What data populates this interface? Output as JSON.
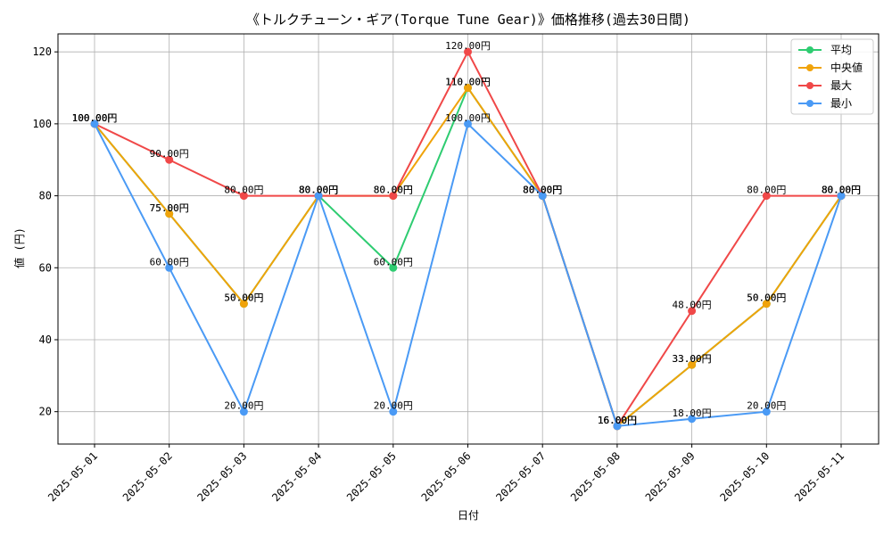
{
  "chart_data": {
    "type": "line",
    "title": "《トルクチューン・ギア(Torque Tune Gear)》価格推移(過去30日間)",
    "xlabel": "日付",
    "ylabel": "値 (円)",
    "categories": [
      "2025-05-01",
      "2025-05-02",
      "2025-05-03",
      "2025-05-04",
      "2025-05-05",
      "2025-05-06",
      "2025-05-07",
      "2025-05-08",
      "2025-05-09",
      "2025-05-10",
      "2025-05-11"
    ],
    "ylim": [
      11,
      125
    ],
    "yticks": [
      20,
      40,
      60,
      80,
      100,
      120
    ],
    "grid": true,
    "legend_position": "top-right",
    "label_suffix": "円",
    "series": [
      {
        "name": "平均",
        "color": "#2ecc71",
        "values": [
          100,
          75,
          50,
          80,
          60,
          110,
          80,
          16,
          33,
          50,
          80
        ]
      },
      {
        "name": "中央値",
        "color": "#f0a30a",
        "values": [
          100,
          75,
          50,
          80,
          80,
          110,
          80,
          16,
          33,
          50,
          80
        ]
      },
      {
        "name": "最大",
        "color": "#f04848",
        "values": [
          100,
          90,
          80,
          80,
          80,
          120,
          80,
          16,
          48,
          80,
          80
        ]
      },
      {
        "name": "最小",
        "color": "#4a9af5",
        "values": [
          100,
          60,
          20,
          80,
          20,
          100,
          80,
          16,
          18,
          20,
          80
        ]
      }
    ]
  }
}
